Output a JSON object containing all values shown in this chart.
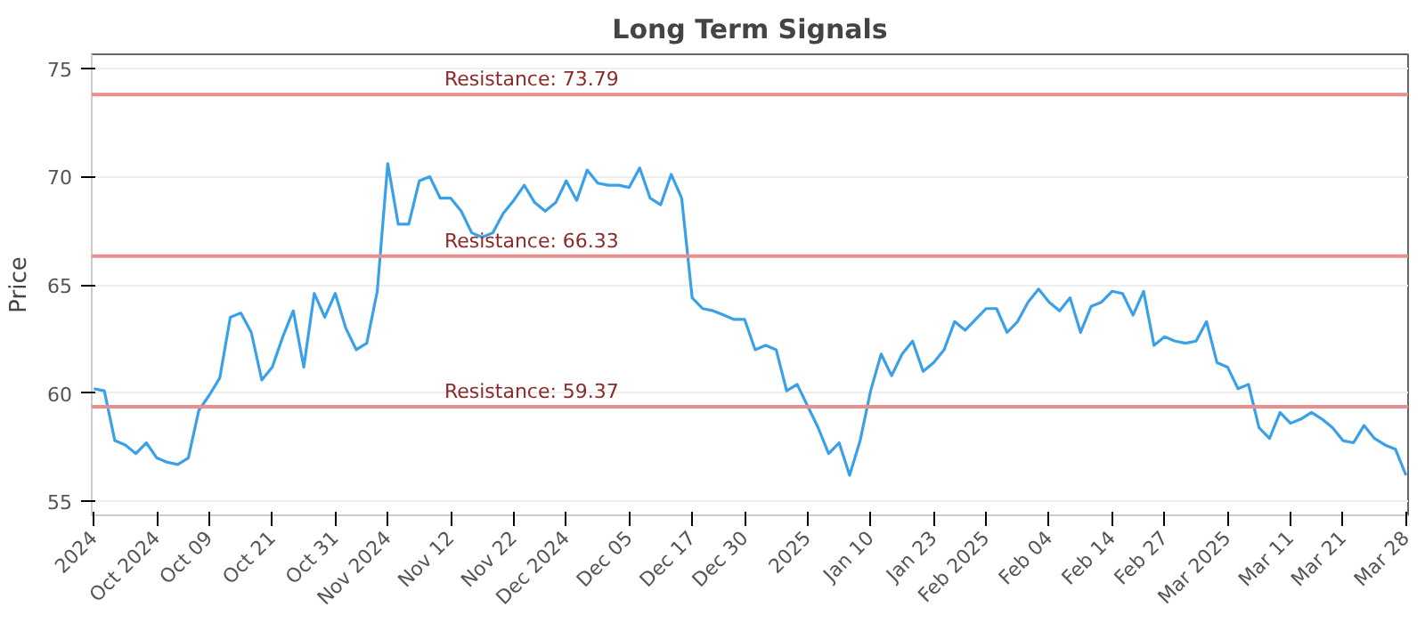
{
  "chart_data": {
    "type": "line",
    "title": "Long Term Signals",
    "ylabel": "Price",
    "categories": [
      "2024",
      null,
      null,
      null,
      null,
      null,
      "Oct 2024",
      null,
      null,
      null,
      null,
      "Oct 09",
      null,
      null,
      null,
      null,
      null,
      "Oct 21",
      null,
      null,
      null,
      null,
      null,
      "Oct 31",
      null,
      null,
      null,
      null,
      "Nov 2024",
      null,
      null,
      null,
      null,
      null,
      "Nov 12",
      null,
      null,
      null,
      null,
      null,
      "Nov 22",
      null,
      null,
      null,
      null,
      "Dec 2024",
      null,
      null,
      null,
      null,
      null,
      "Dec 05",
      null,
      null,
      null,
      null,
      null,
      "Dec 17",
      null,
      null,
      null,
      null,
      "Dec 30",
      null,
      null,
      null,
      null,
      null,
      "2025",
      null,
      null,
      null,
      null,
      null,
      "Jan 10",
      null,
      null,
      null,
      null,
      null,
      "Jan 23",
      null,
      null,
      null,
      null,
      "Feb 2025",
      null,
      null,
      null,
      null,
      null,
      "Feb 04",
      null,
      null,
      null,
      null,
      null,
      "Feb 14",
      null,
      null,
      null,
      null,
      "Feb 27",
      null,
      null,
      null,
      null,
      null,
      "Mar 2025",
      null,
      null,
      null,
      null,
      null,
      "Mar 11",
      null,
      null,
      null,
      null,
      "Mar 21",
      null,
      null,
      null,
      null,
      null,
      "Mar 28"
    ],
    "series": [
      {
        "color": "#3aa0e8",
        "values": [
          60.2,
          60.1,
          57.8,
          57.6,
          57.2,
          57.7,
          57.0,
          56.8,
          56.7,
          57.0,
          59.2,
          59.9,
          60.7,
          63.5,
          63.7,
          62.8,
          60.6,
          61.2,
          62.6,
          63.8,
          61.2,
          64.6,
          63.5,
          64.6,
          63.0,
          62.0,
          62.3,
          64.7,
          70.6,
          67.8,
          67.8,
          69.8,
          70.0,
          69.0,
          69.0,
          68.4,
          67.4,
          67.2,
          67.4,
          68.3,
          68.9,
          69.6,
          68.8,
          68.4,
          68.8,
          69.8,
          68.9,
          70.3,
          69.7,
          69.6,
          69.6,
          69.5,
          70.4,
          69.0,
          68.7,
          70.1,
          69.0,
          64.4,
          63.9,
          63.8,
          63.6,
          63.4,
          63.4,
          62.0,
          62.2,
          62.0,
          60.1,
          60.4,
          59.4,
          58.4,
          57.2,
          57.7,
          56.2,
          57.8,
          60.1,
          61.8,
          60.8,
          61.8,
          62.4,
          61.0,
          61.4,
          62.0,
          63.3,
          62.9,
          63.4,
          63.9,
          63.9,
          62.8,
          63.3,
          64.2,
          64.8,
          64.2,
          63.8,
          64.4,
          62.8,
          64.0,
          64.2,
          64.7,
          64.6,
          63.6,
          64.7,
          62.2,
          62.6,
          62.4,
          62.3,
          62.4,
          63.3,
          61.4,
          61.2,
          60.2,
          60.4,
          58.4,
          57.9,
          59.1,
          58.6,
          58.8,
          59.1,
          58.8,
          58.4,
          57.8,
          57.7,
          58.5,
          57.9,
          57.6,
          57.4,
          56.2
        ]
      }
    ],
    "ylim": [
      54.35,
      75.65
    ],
    "yticks": [
      55,
      60,
      65,
      70,
      75
    ],
    "grid": "y",
    "marker": "none",
    "line_style": "solid",
    "ref_lines": [
      {
        "axis": "y",
        "value": 73.79,
        "label": "Resistance: 73.79",
        "color": "#e88e8e"
      },
      {
        "axis": "y",
        "value": 66.33,
        "label": "Resistance: 66.33",
        "color": "#e88e8e"
      },
      {
        "axis": "y",
        "value": 59.37,
        "label": "Resistance: 59.37",
        "color": "#e88e8e"
      }
    ]
  }
}
